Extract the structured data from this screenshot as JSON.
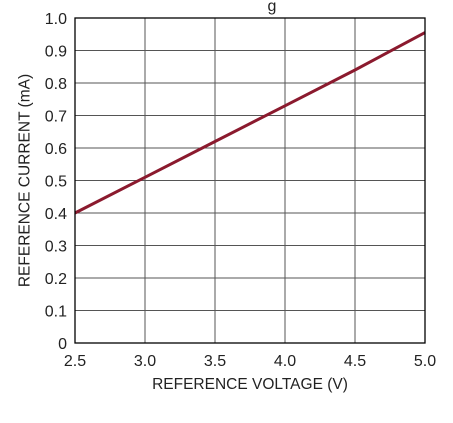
{
  "chart_data": {
    "type": "line",
    "title": "",
    "title_partial": "g",
    "xlabel": "REFERENCE VOLTAGE (V)",
    "ylabel": "REFERENCE CURRENT (mA)",
    "xlim": [
      2.5,
      5.0
    ],
    "ylim": [
      0,
      1.0
    ],
    "x_ticks": [
      "2.5",
      "3.0",
      "3.5",
      "4.0",
      "4.5",
      "5.0"
    ],
    "y_ticks": [
      "0",
      "0.1",
      "0.2",
      "0.3",
      "0.4",
      "0.5",
      "0.6",
      "0.7",
      "0.8",
      "0.9",
      "1.0"
    ],
    "grid": true,
    "series": [
      {
        "color": "#8b1a2e",
        "x": [
          2.5,
          3.0,
          3.5,
          4.0,
          4.5,
          5.0
        ],
        "y": [
          0.4,
          0.51,
          0.62,
          0.73,
          0.84,
          0.955
        ]
      }
    ]
  }
}
